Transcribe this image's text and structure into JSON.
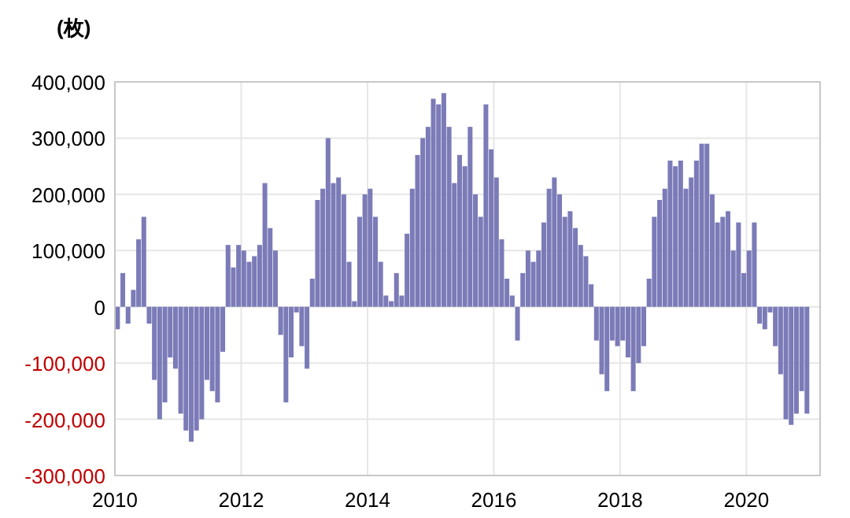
{
  "chart_data": {
    "type": "bar",
    "ylabel": "(枚)",
    "color": "#7b7bb8",
    "grid": true,
    "x": [
      "2010-01",
      "2010-02",
      "2010-03",
      "2010-04",
      "2010-05",
      "2010-06",
      "2010-07",
      "2010-08",
      "2010-09",
      "2010-10",
      "2010-11",
      "2010-12",
      "2011-01",
      "2011-02",
      "2011-03",
      "2011-04",
      "2011-05",
      "2011-06",
      "2011-07",
      "2011-08",
      "2011-09",
      "2011-10",
      "2011-11",
      "2011-12",
      "2012-01",
      "2012-02",
      "2012-03",
      "2012-04",
      "2012-05",
      "2012-06",
      "2012-07",
      "2012-08",
      "2012-09",
      "2012-10",
      "2012-11",
      "2012-12",
      "2013-01",
      "2013-02",
      "2013-03",
      "2013-04",
      "2013-05",
      "2013-06",
      "2013-07",
      "2013-08",
      "2013-09",
      "2013-10",
      "2013-11",
      "2013-12",
      "2014-01",
      "2014-02",
      "2014-03",
      "2014-04",
      "2014-05",
      "2014-06",
      "2014-07",
      "2014-08",
      "2014-09",
      "2014-10",
      "2014-11",
      "2014-12",
      "2015-01",
      "2015-02",
      "2015-03",
      "2015-04",
      "2015-05",
      "2015-06",
      "2015-07",
      "2015-08",
      "2015-09",
      "2015-10",
      "2015-11",
      "2015-12",
      "2016-01",
      "2016-02",
      "2016-03",
      "2016-04",
      "2016-05",
      "2016-06",
      "2016-07",
      "2016-08",
      "2016-09",
      "2016-10",
      "2016-11",
      "2016-12",
      "2017-01",
      "2017-02",
      "2017-03",
      "2017-04",
      "2017-05",
      "2017-06",
      "2017-07",
      "2017-08",
      "2017-09",
      "2017-10",
      "2017-11",
      "2017-12",
      "2018-01",
      "2018-02",
      "2018-03",
      "2018-04",
      "2018-05",
      "2018-06",
      "2018-07",
      "2018-08",
      "2018-09",
      "2018-10",
      "2018-11",
      "2018-12",
      "2019-01",
      "2019-02",
      "2019-03",
      "2019-04",
      "2019-05",
      "2019-06",
      "2019-07",
      "2019-08",
      "2019-09",
      "2019-10",
      "2019-11",
      "2019-12",
      "2020-01",
      "2020-02",
      "2020-03",
      "2020-04",
      "2020-05",
      "2020-06",
      "2020-07",
      "2020-08",
      "2020-09",
      "2020-10",
      "2020-11",
      "2020-12"
    ],
    "values": [
      -40000,
      60000,
      -30000,
      30000,
      120000,
      160000,
      -30000,
      -130000,
      -200000,
      -170000,
      -90000,
      -110000,
      -190000,
      -220000,
      -240000,
      -220000,
      -200000,
      -130000,
      -150000,
      -170000,
      -80000,
      110000,
      70000,
      110000,
      100000,
      80000,
      90000,
      110000,
      220000,
      140000,
      100000,
      -50000,
      -170000,
      -90000,
      -10000,
      -70000,
      -110000,
      50000,
      190000,
      210000,
      300000,
      220000,
      230000,
      200000,
      80000,
      10000,
      160000,
      200000,
      210000,
      160000,
      80000,
      20000,
      10000,
      60000,
      20000,
      130000,
      210000,
      270000,
      300000,
      320000,
      370000,
      360000,
      380000,
      320000,
      220000,
      270000,
      250000,
      320000,
      200000,
      160000,
      360000,
      280000,
      230000,
      120000,
      50000,
      20000,
      -60000,
      60000,
      100000,
      80000,
      100000,
      150000,
      210000,
      230000,
      200000,
      160000,
      170000,
      140000,
      110000,
      90000,
      40000,
      -60000,
      -120000,
      -150000,
      -60000,
      -70000,
      -60000,
      -90000,
      -150000,
      -100000,
      -70000,
      50000,
      160000,
      190000,
      210000,
      260000,
      250000,
      260000,
      210000,
      230000,
      260000,
      290000,
      290000,
      200000,
      150000,
      160000,
      170000,
      100000,
      150000,
      60000,
      100000,
      150000,
      -30000,
      -40000,
      -10000,
      -70000,
      -120000,
      -200000,
      -210000,
      -190000,
      -150000,
      -190000
    ],
    "xlim": [
      "2010-01",
      "2021-03"
    ],
    "xticks": [
      "2010",
      "2012",
      "2014",
      "2016",
      "2018",
      "2020"
    ],
    "ylim": [
      -300000,
      400000
    ],
    "yticks": [
      {
        "value": 400000,
        "label": "400,000"
      },
      {
        "value": 300000,
        "label": "300,000"
      },
      {
        "value": 200000,
        "label": "200,000"
      },
      {
        "value": 100000,
        "label": "100,000"
      },
      0,
      {
        "value": -100000,
        "label": "-100,000"
      },
      {
        "value": -200000,
        "label": "-200,000"
      },
      {
        "value": -300000,
        "label": "-300,000"
      }
    ]
  }
}
